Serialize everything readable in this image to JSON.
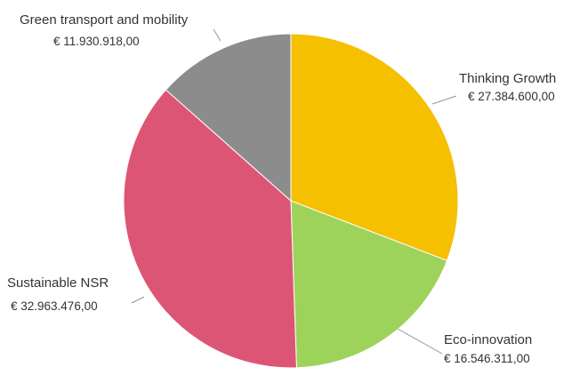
{
  "chart_data": {
    "type": "pie",
    "title": "",
    "start_angle_deg": 0,
    "direction": "clockwise",
    "legend": "none",
    "slices": [
      {
        "label": "Thinking Growth",
        "value_label": "€ 27.384.600,00",
        "value": 27384600.0,
        "color": "#f5c000"
      },
      {
        "label": "Eco-innovation",
        "value_label": "€ 16.546.311,00",
        "value": 16546311.0,
        "color": "#9dd35a"
      },
      {
        "label": "Sustainable NSR",
        "value_label": "€ 32.963.476,00",
        "value": 32963476.0,
        "color": "#dd5574"
      },
      {
        "label": "Green transport and mobility",
        "value_label": "€ 11.930.918,00",
        "value": 11930918.0,
        "color": "#8c8c8c"
      }
    ]
  }
}
